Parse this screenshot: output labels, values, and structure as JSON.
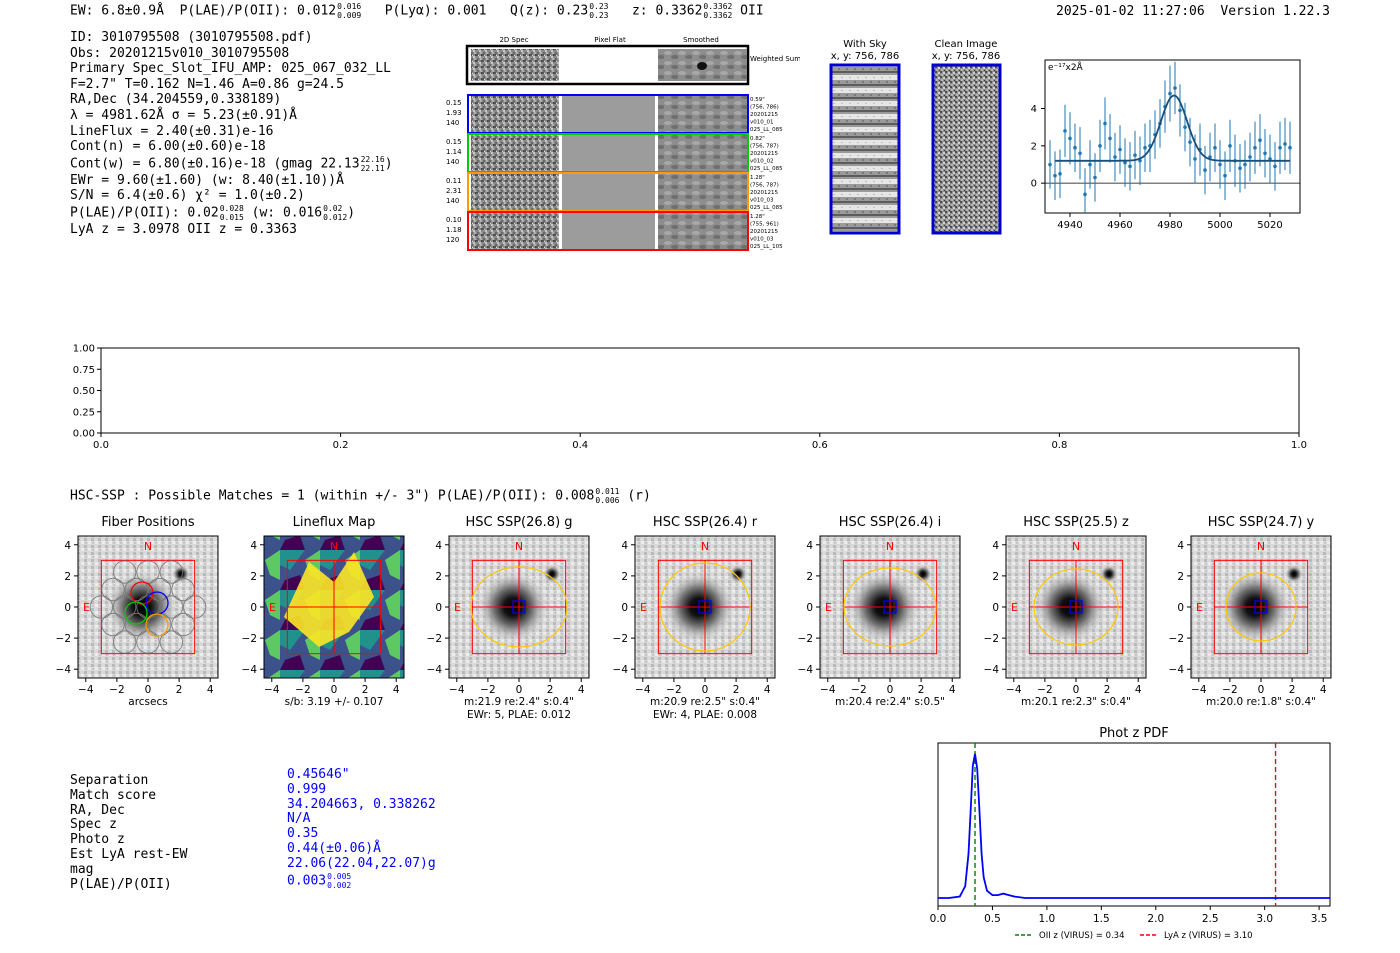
{
  "header": {
    "ew": "EW: 6.8±0.9Å",
    "plae_label": "P(LAE)/P(OII): 0.012",
    "plae_hi": "0.016",
    "plae_lo": "0.009",
    "plya": "P(Lyα): 0.001",
    "qz_label": "Q(z): 0.23",
    "qz_hi": "0.23",
    "qz_lo": "0.23",
    "z_label": "z: 0.3362",
    "z_hi": "0.3362",
    "z_lo": "0.3362",
    "z_line": "OII",
    "datetime": "2025-01-02 11:27:06",
    "version": "Version 1.22.3"
  },
  "info": {
    "id": "ID: 3010795508 (3010795508.pdf)",
    "obs": "Obs: 20201215v010_3010795508",
    "primary": "Primary Spec_Slot_IFU_AMP: 025_067_032_LL",
    "params": "F=2.7\"  T=0.162  N=1.46  A=0.86  g=24.5",
    "radec": "RA,Dec (34.204559,0.338189)",
    "lambda": "λ = 4981.62Å   σ = 5.23(±0.91)Å",
    "lineflux": "LineFlux = 2.40(±0.31)e-16",
    "contn": "Cont(n) = 6.00(±0.60)e-18",
    "contw": "Cont(w) = 6.80(±0.16)e-18 (gmag 22.13",
    "contw_hi": "22.16",
    "contw_lo": "22.11",
    "ewr": "EWr = 9.60(±1.60) (w: 8.40(±1.10))Å",
    "sn": "S/N = 6.4(±0.6)  χ² = 1.0(±0.2)",
    "plae": "P(LAE)/P(OII): 0.02",
    "plae_hi": "0.028",
    "plae_lo": "0.015",
    "plae_w": "(w: 0.016",
    "plae_w_hi": "0.02",
    "plae_w_lo": "0.012",
    "lyaz": "LyA z = 3.0978   OII z = 0.3363"
  },
  "cutouts": {
    "col_headers": [
      "2D Spec",
      "Pixel Flat",
      "Smoothed"
    ],
    "weighted_sum": "Weighted Sum",
    "rows": [
      {
        "color": "#0000ff",
        "left": [
          "0.15",
          "1.93",
          "140"
        ],
        "right": [
          "0.59\"",
          "(756, 786)",
          "20201215",
          "v010_01",
          "025_LL_085"
        ]
      },
      {
        "color": "#00cc00",
        "left": [
          "0.15",
          "1.14",
          "140"
        ],
        "right": [
          "0.82\"",
          "(756, 787)",
          "20201215",
          "v010_02",
          "025_LL_085"
        ]
      },
      {
        "color": "#ff9900",
        "left": [
          "0.11",
          "2.31",
          "140"
        ],
        "right": [
          "1.28\"",
          "(756, 787)",
          "20201215",
          "v010_03",
          "025_LL_085"
        ]
      },
      {
        "color": "#ff0000",
        "left": [
          "0.10",
          "1.18",
          "120"
        ],
        "right": [
          "1.28\"",
          "(755, 961)",
          "20201215",
          "v010_03",
          "025_LL_105"
        ]
      }
    ],
    "with_sky_title": "With Sky",
    "with_sky_xy": "x, y: 756, 786",
    "clean_title": "Clean Image",
    "clean_xy": "x, y: 756, 786"
  },
  "chart_data": [
    {
      "type": "scatter",
      "title": "",
      "ylabel": "e⁻¹⁷x2Å",
      "xlabel": "",
      "xlim": [
        4930,
        5032
      ],
      "ylim": [
        -1.6,
        6.6
      ],
      "xticks": [
        4940,
        4960,
        4980,
        5000,
        5020
      ],
      "yticks": [
        0,
        2,
        4
      ],
      "color": "#1f77b4",
      "points": {
        "x": [
          4932,
          4934,
          4936,
          4938,
          4940,
          4942,
          4944,
          4946,
          4948,
          4950,
          4952,
          4954,
          4956,
          4958,
          4960,
          4962,
          4964,
          4966,
          4968,
          4970,
          4972,
          4974,
          4976,
          4978,
          4980,
          4982,
          4984,
          4986,
          4988,
          4990,
          4992,
          4994,
          4996,
          4998,
          5000,
          5002,
          5004,
          5006,
          5008,
          5010,
          5012,
          5014,
          5016,
          5018,
          5020,
          5022,
          5024,
          5026,
          5028
        ],
        "y": [
          1.0,
          0.4,
          0.5,
          2.8,
          2.4,
          1.9,
          1.6,
          -0.6,
          1.0,
          0.3,
          2.0,
          3.2,
          2.4,
          1.4,
          1.8,
          1.1,
          0.9,
          1.5,
          1.2,
          1.9,
          2.0,
          2.6,
          3.2,
          4.1,
          4.8,
          5.1,
          3.9,
          3.0,
          2.2,
          1.3,
          1.8,
          0.7,
          1.4,
          1.9,
          1.0,
          0.4,
          2.0,
          1.2,
          0.8,
          1.0,
          1.4,
          1.9,
          2.3,
          1.6,
          1.3,
          0.9,
          1.9,
          2.1,
          1.9
        ],
        "err": [
          1.3,
          1.3,
          1.3,
          1.4,
          1.4,
          1.3,
          1.4,
          1.4,
          1.3,
          1.3,
          1.4,
          1.4,
          1.3,
          1.3,
          1.3,
          1.3,
          1.3,
          1.3,
          1.3,
          1.3,
          1.4,
          1.3,
          1.3,
          1.4,
          1.5,
          1.4,
          1.4,
          1.3,
          1.3,
          1.3,
          1.4,
          1.3,
          1.3,
          1.3,
          1.3,
          1.3,
          1.4,
          1.4,
          1.3,
          1.3,
          1.3,
          1.4,
          1.4,
          1.3,
          1.3,
          1.3,
          1.4,
          1.4,
          1.4
        ]
      },
      "fit": {
        "continuum": 1.2,
        "peak": 3.5,
        "center": 4981.6,
        "sigma": 5.23,
        "x_range": [
          4934,
          5028
        ]
      }
    },
    {
      "type": "line",
      "title": "",
      "xlim": [
        0.0,
        1.0
      ],
      "ylim": [
        0.0,
        1.0
      ],
      "xticks": [
        "0.0",
        "0.2",
        "0.4",
        "0.6",
        "0.8",
        "1.0"
      ],
      "yticks": [
        "0.00",
        "0.25",
        "0.50",
        "0.75",
        "1.00"
      ],
      "series": []
    },
    {
      "type": "line",
      "title": "Phot z PDF",
      "xlim": [
        0.0,
        3.6
      ],
      "ylim": [
        0,
        1.0
      ],
      "xticks": [
        "0.0",
        "0.5",
        "1.0",
        "1.5",
        "2.0",
        "2.5",
        "3.0",
        "3.5"
      ],
      "pdf": {
        "x": [
          0.0,
          0.1,
          0.2,
          0.25,
          0.28,
          0.3,
          0.32,
          0.34,
          0.36,
          0.38,
          0.4,
          0.42,
          0.45,
          0.5,
          0.55,
          0.6,
          0.65,
          0.7,
          0.8,
          1.0,
          1.5,
          2.0,
          2.5,
          3.0,
          3.5,
          3.6
        ],
        "y": [
          0.0,
          0.0,
          0.01,
          0.08,
          0.3,
          0.6,
          0.9,
          0.98,
          0.88,
          0.6,
          0.3,
          0.14,
          0.05,
          0.02,
          0.02,
          0.03,
          0.02,
          0.01,
          0.0,
          0.0,
          0.0,
          0.0,
          0.0,
          0.0,
          0.0,
          0.0
        ]
      },
      "vlines": [
        {
          "x": 0.34,
          "color": "#008000",
          "label": "OII z (VIRUS) = 0.34"
        },
        {
          "x": 3.1,
          "color": "#ff0000",
          "label": "LyA z (VIRUS) = 3.10"
        }
      ]
    }
  ],
  "hsc": {
    "header_label": "HSC-SSP : Possible Matches = 1 (within +/- 3\")  P(LAE)/P(OII): 0.008",
    "header_hi": "0.011",
    "header_lo": "0.006",
    "header_band": "(r)",
    "axis_ticks_x": [
      "−4",
      "−2",
      "0",
      "2",
      "4"
    ],
    "axis_ticks_y": [
      "4",
      "2",
      "0",
      "−2",
      "−4"
    ],
    "compass_n": "N",
    "compass_e": "E",
    "panels": [
      {
        "title": "Fiber Positions",
        "caption1": "arcsecs",
        "caption2": ""
      },
      {
        "title": "Lineflux Map",
        "caption1": "s/b: 3.19 +/- 0.107",
        "caption2": ""
      },
      {
        "title": "HSC SSP(26.8) g",
        "caption1": "m:21.9  re:2.4\"  s:0.4\"",
        "caption2": "EWr: 5, PLAE: 0.012"
      },
      {
        "title": "HSC SSP(26.4) r",
        "caption1": "m:20.9  re:2.5\"  s:0.4\"",
        "caption2": "EWr: 4, PLAE: 0.008"
      },
      {
        "title": "HSC SSP(26.4) i",
        "caption1": "m:20.4  re:2.4\"  s:0.5\"",
        "caption2": ""
      },
      {
        "title": "HSC SSP(25.5) z",
        "caption1": "m:20.1  re:2.3\"  s:0.4\"",
        "caption2": ""
      },
      {
        "title": "HSC SSP(24.7) y",
        "caption1": "m:20.0  re:1.8\"  s:0.4\"",
        "caption2": ""
      }
    ]
  },
  "match": {
    "labels": [
      "Separation",
      "Match score",
      "RA, Dec",
      "Spec z",
      "Photo z",
      "Est LyA rest-EW",
      "mag",
      "P(LAE)/P(OII)"
    ],
    "separation": "0.45646\"",
    "score": "0.999",
    "radec": "34.204663, 0.338262",
    "specz": "N/A",
    "photoz": "0.35",
    "ew": "0.44(±0.06)Å",
    "mag": "22.06(22.04,22.07)g",
    "plae": "0.003",
    "plae_hi": "0.005",
    "plae_lo": "0.002"
  }
}
